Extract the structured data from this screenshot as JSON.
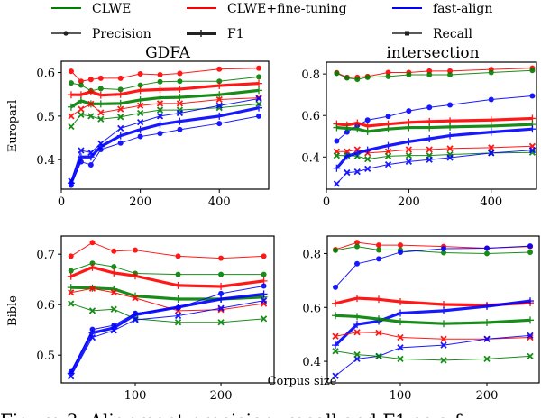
{
  "legend": {
    "methods": [
      {
        "label": "CLWE",
        "color": "#008000"
      },
      {
        "label": "CLWE+fine-tuning",
        "color": "#ff0000"
      },
      {
        "label": "fast-align",
        "color": "#0000ff"
      }
    ],
    "metrics": [
      {
        "label": "Precision",
        "marker": "circle",
        "line": "thin"
      },
      {
        "label": "F1",
        "marker": "plus",
        "line": "thick"
      },
      {
        "label": "Recall",
        "marker": "x",
        "line": "thin"
      }
    ]
  },
  "column_titles": [
    "GDFA",
    "intersection"
  ],
  "row_labels": [
    "Europarl",
    "Bible"
  ],
  "xlabel": "Corpus size",
  "caption": "Figure 3: Alignment precision, recall and F1 as a f",
  "chart_data": [
    {
      "type": "line",
      "title": "GDFA",
      "ylabel": "Europarl",
      "grid": false,
      "xlim": [
        0,
        525
      ],
      "ylim": [
        0.332,
        0.626
      ],
      "xticks": [
        0,
        200,
        400
      ],
      "yticks": [
        0.4,
        0.5,
        0.6
      ],
      "x": [
        25,
        50,
        75,
        100,
        150,
        200,
        250,
        300,
        400,
        500
      ],
      "series": [
        {
          "method": "CLWE+fine-tuning",
          "metric": "Precision",
          "values": [
            0.603,
            0.58,
            0.584,
            0.587,
            0.587,
            0.597,
            0.595,
            0.598,
            0.608,
            0.61
          ]
        },
        {
          "method": "CLWE",
          "metric": "Precision",
          "values": [
            0.576,
            0.571,
            0.558,
            0.563,
            0.561,
            0.571,
            0.579,
            0.58,
            0.58,
            0.59
          ]
        },
        {
          "method": "CLWE+fine-tuning",
          "metric": "F1",
          "values": [
            0.549,
            0.549,
            0.556,
            0.548,
            0.55,
            0.559,
            0.561,
            0.562,
            0.57,
            0.575
          ]
        },
        {
          "method": "CLWE",
          "metric": "F1",
          "values": [
            0.521,
            0.535,
            0.528,
            0.528,
            0.529,
            0.537,
            0.542,
            0.543,
            0.549,
            0.559
          ]
        },
        {
          "method": "CLWE+fine-tuning",
          "metric": "Recall",
          "values": [
            0.5,
            0.516,
            0.528,
            0.508,
            0.516,
            0.524,
            0.529,
            0.529,
            0.538,
            0.542
          ]
        },
        {
          "method": "CLWE",
          "metric": "Recall",
          "values": [
            0.476,
            0.503,
            0.5,
            0.493,
            0.498,
            0.507,
            0.514,
            0.514,
            0.519,
            0.528
          ]
        },
        {
          "method": "fast-align",
          "metric": "Recall",
          "values": [
            0.351,
            0.421,
            0.416,
            0.437,
            0.472,
            0.486,
            0.5,
            0.507,
            0.524,
            0.54
          ]
        },
        {
          "method": "fast-align",
          "metric": "F1",
          "values": [
            0.346,
            0.406,
            0.406,
            0.43,
            0.455,
            0.469,
            0.481,
            0.488,
            0.5,
            0.519
          ]
        },
        {
          "method": "fast-align",
          "metric": "Precision",
          "values": [
            0.341,
            0.395,
            0.388,
            0.423,
            0.438,
            0.453,
            0.46,
            0.469,
            0.483,
            0.5
          ]
        }
      ]
    },
    {
      "type": "line",
      "title": "intersection",
      "ylabel": "",
      "grid": false,
      "xlim": [
        0,
        510
      ],
      "ylim": [
        0.245,
        0.857
      ],
      "xticks": [
        0,
        200,
        400
      ],
      "yticks": [
        0.4,
        0.6,
        0.8
      ],
      "x": [
        25,
        50,
        75,
        100,
        150,
        200,
        250,
        300,
        400,
        500
      ],
      "series": [
        {
          "method": "CLWE+fine-tuning",
          "metric": "Precision",
          "values": [
            0.806,
            0.784,
            0.784,
            0.788,
            0.807,
            0.807,
            0.814,
            0.814,
            0.822,
            0.828
          ]
        },
        {
          "method": "CLWE",
          "metric": "Precision",
          "values": [
            0.803,
            0.781,
            0.774,
            0.784,
            0.788,
            0.796,
            0.796,
            0.796,
            0.807,
            0.817
          ]
        },
        {
          "method": "fast-align",
          "metric": "Precision",
          "values": [
            0.477,
            0.52,
            0.552,
            0.578,
            0.596,
            0.622,
            0.639,
            0.651,
            0.677,
            0.694
          ]
        },
        {
          "method": "CLWE+fine-tuning",
          "metric": "F1",
          "values": [
            0.559,
            0.554,
            0.564,
            0.549,
            0.559,
            0.567,
            0.571,
            0.574,
            0.578,
            0.586
          ]
        },
        {
          "method": "CLWE",
          "metric": "F1",
          "values": [
            0.542,
            0.538,
            0.535,
            0.523,
            0.535,
            0.542,
            0.542,
            0.545,
            0.549,
            0.557
          ]
        },
        {
          "method": "CLWE+fine-tuning",
          "metric": "Recall",
          "values": [
            0.426,
            0.426,
            0.436,
            0.419,
            0.426,
            0.436,
            0.436,
            0.441,
            0.445,
            0.452
          ]
        },
        {
          "method": "CLWE",
          "metric": "Recall",
          "values": [
            0.407,
            0.407,
            0.404,
            0.39,
            0.404,
            0.407,
            0.407,
            0.412,
            0.419,
            0.422
          ]
        },
        {
          "method": "fast-align",
          "metric": "F1",
          "values": [
            0.346,
            0.404,
            0.419,
            0.433,
            0.455,
            0.474,
            0.488,
            0.503,
            0.52,
            0.535
          ]
        },
        {
          "method": "fast-align",
          "metric": "Recall",
          "values": [
            0.271,
            0.325,
            0.329,
            0.343,
            0.364,
            0.378,
            0.387,
            0.397,
            0.419,
            0.433
          ]
        }
      ]
    },
    {
      "type": "line",
      "title": "",
      "ylabel": "Bible",
      "grid": false,
      "xlim": [
        13.7,
        262
      ],
      "ylim": [
        0.445,
        0.736
      ],
      "xticks": [
        100,
        200
      ],
      "yticks": [
        0.5,
        0.6,
        0.7
      ],
      "x": [
        25,
        50,
        75,
        100,
        150,
        200,
        250
      ],
      "series": [
        {
          "method": "CLWE+fine-tuning",
          "metric": "Precision",
          "values": [
            0.696,
            0.723,
            0.706,
            0.708,
            0.696,
            0.692,
            0.696
          ]
        },
        {
          "method": "CLWE",
          "metric": "Precision",
          "values": [
            0.667,
            0.682,
            0.675,
            0.662,
            0.66,
            0.66,
            0.66
          ]
        },
        {
          "method": "CLWE+fine-tuning",
          "metric": "F1",
          "values": [
            0.656,
            0.674,
            0.663,
            0.657,
            0.638,
            0.636,
            0.647
          ]
        },
        {
          "method": "CLWE",
          "metric": "F1",
          "values": [
            0.634,
            0.633,
            0.631,
            0.617,
            0.611,
            0.611,
            0.615
          ]
        },
        {
          "method": "CLWE+fine-tuning",
          "metric": "Recall",
          "values": [
            0.624,
            0.632,
            0.624,
            0.613,
            0.588,
            0.59,
            0.602
          ]
        },
        {
          "method": "CLWE",
          "metric": "Recall",
          "values": [
            0.602,
            0.588,
            0.591,
            0.572,
            0.565,
            0.565,
            0.572
          ]
        },
        {
          "method": "fast-align",
          "metric": "Precision",
          "values": [
            0.467,
            0.551,
            0.559,
            0.583,
            0.594,
            0.622,
            0.637
          ]
        },
        {
          "method": "fast-align",
          "metric": "F1",
          "values": [
            0.464,
            0.544,
            0.554,
            0.58,
            0.595,
            0.611,
            0.621
          ]
        },
        {
          "method": "fast-align",
          "metric": "Recall",
          "values": [
            0.458,
            0.535,
            0.549,
            0.57,
            0.578,
            0.593,
            0.608
          ]
        }
      ]
    },
    {
      "type": "line",
      "title": "",
      "ylabel": "",
      "xlabel": "Corpus size",
      "grid": false,
      "xlim": [
        15.6,
        260.4
      ],
      "ylim": [
        0.32,
        0.865
      ],
      "xticks": [
        100,
        200
      ],
      "yticks": [
        0.4,
        0.6,
        0.8
      ],
      "x": [
        25,
        50,
        75,
        100,
        150,
        200,
        250
      ],
      "series": [
        {
          "method": "CLWE+fine-tuning",
          "metric": "Precision",
          "values": [
            0.815,
            0.841,
            0.831,
            0.831,
            0.826,
            0.82,
            0.826
          ]
        },
        {
          "method": "CLWE",
          "metric": "Precision",
          "values": [
            0.812,
            0.826,
            0.813,
            0.813,
            0.803,
            0.8,
            0.805
          ]
        },
        {
          "method": "fast-align",
          "metric": "Precision",
          "values": [
            0.675,
            0.762,
            0.78,
            0.805,
            0.818,
            0.82,
            0.828
          ]
        },
        {
          "method": "CLWE+fine-tuning",
          "metric": "F1",
          "values": [
            0.615,
            0.634,
            0.63,
            0.621,
            0.611,
            0.608,
            0.617
          ]
        },
        {
          "method": "fast-align",
          "metric": "F1",
          "values": [
            0.46,
            0.537,
            0.549,
            0.579,
            0.588,
            0.604,
            0.624
          ]
        },
        {
          "method": "CLWE",
          "metric": "F1",
          "values": [
            0.57,
            0.566,
            0.557,
            0.547,
            0.54,
            0.544,
            0.553
          ]
        },
        {
          "method": "CLWE+fine-tuning",
          "metric": "Recall",
          "values": [
            0.493,
            0.508,
            0.506,
            0.489,
            0.483,
            0.483,
            0.489
          ]
        },
        {
          "method": "fast-align",
          "metric": "Recall",
          "values": [
            0.346,
            0.409,
            0.419,
            0.451,
            0.46,
            0.483,
            0.496
          ]
        },
        {
          "method": "CLWE",
          "metric": "Recall",
          "values": [
            0.438,
            0.425,
            0.419,
            0.409,
            0.404,
            0.409,
            0.419
          ]
        }
      ]
    }
  ]
}
